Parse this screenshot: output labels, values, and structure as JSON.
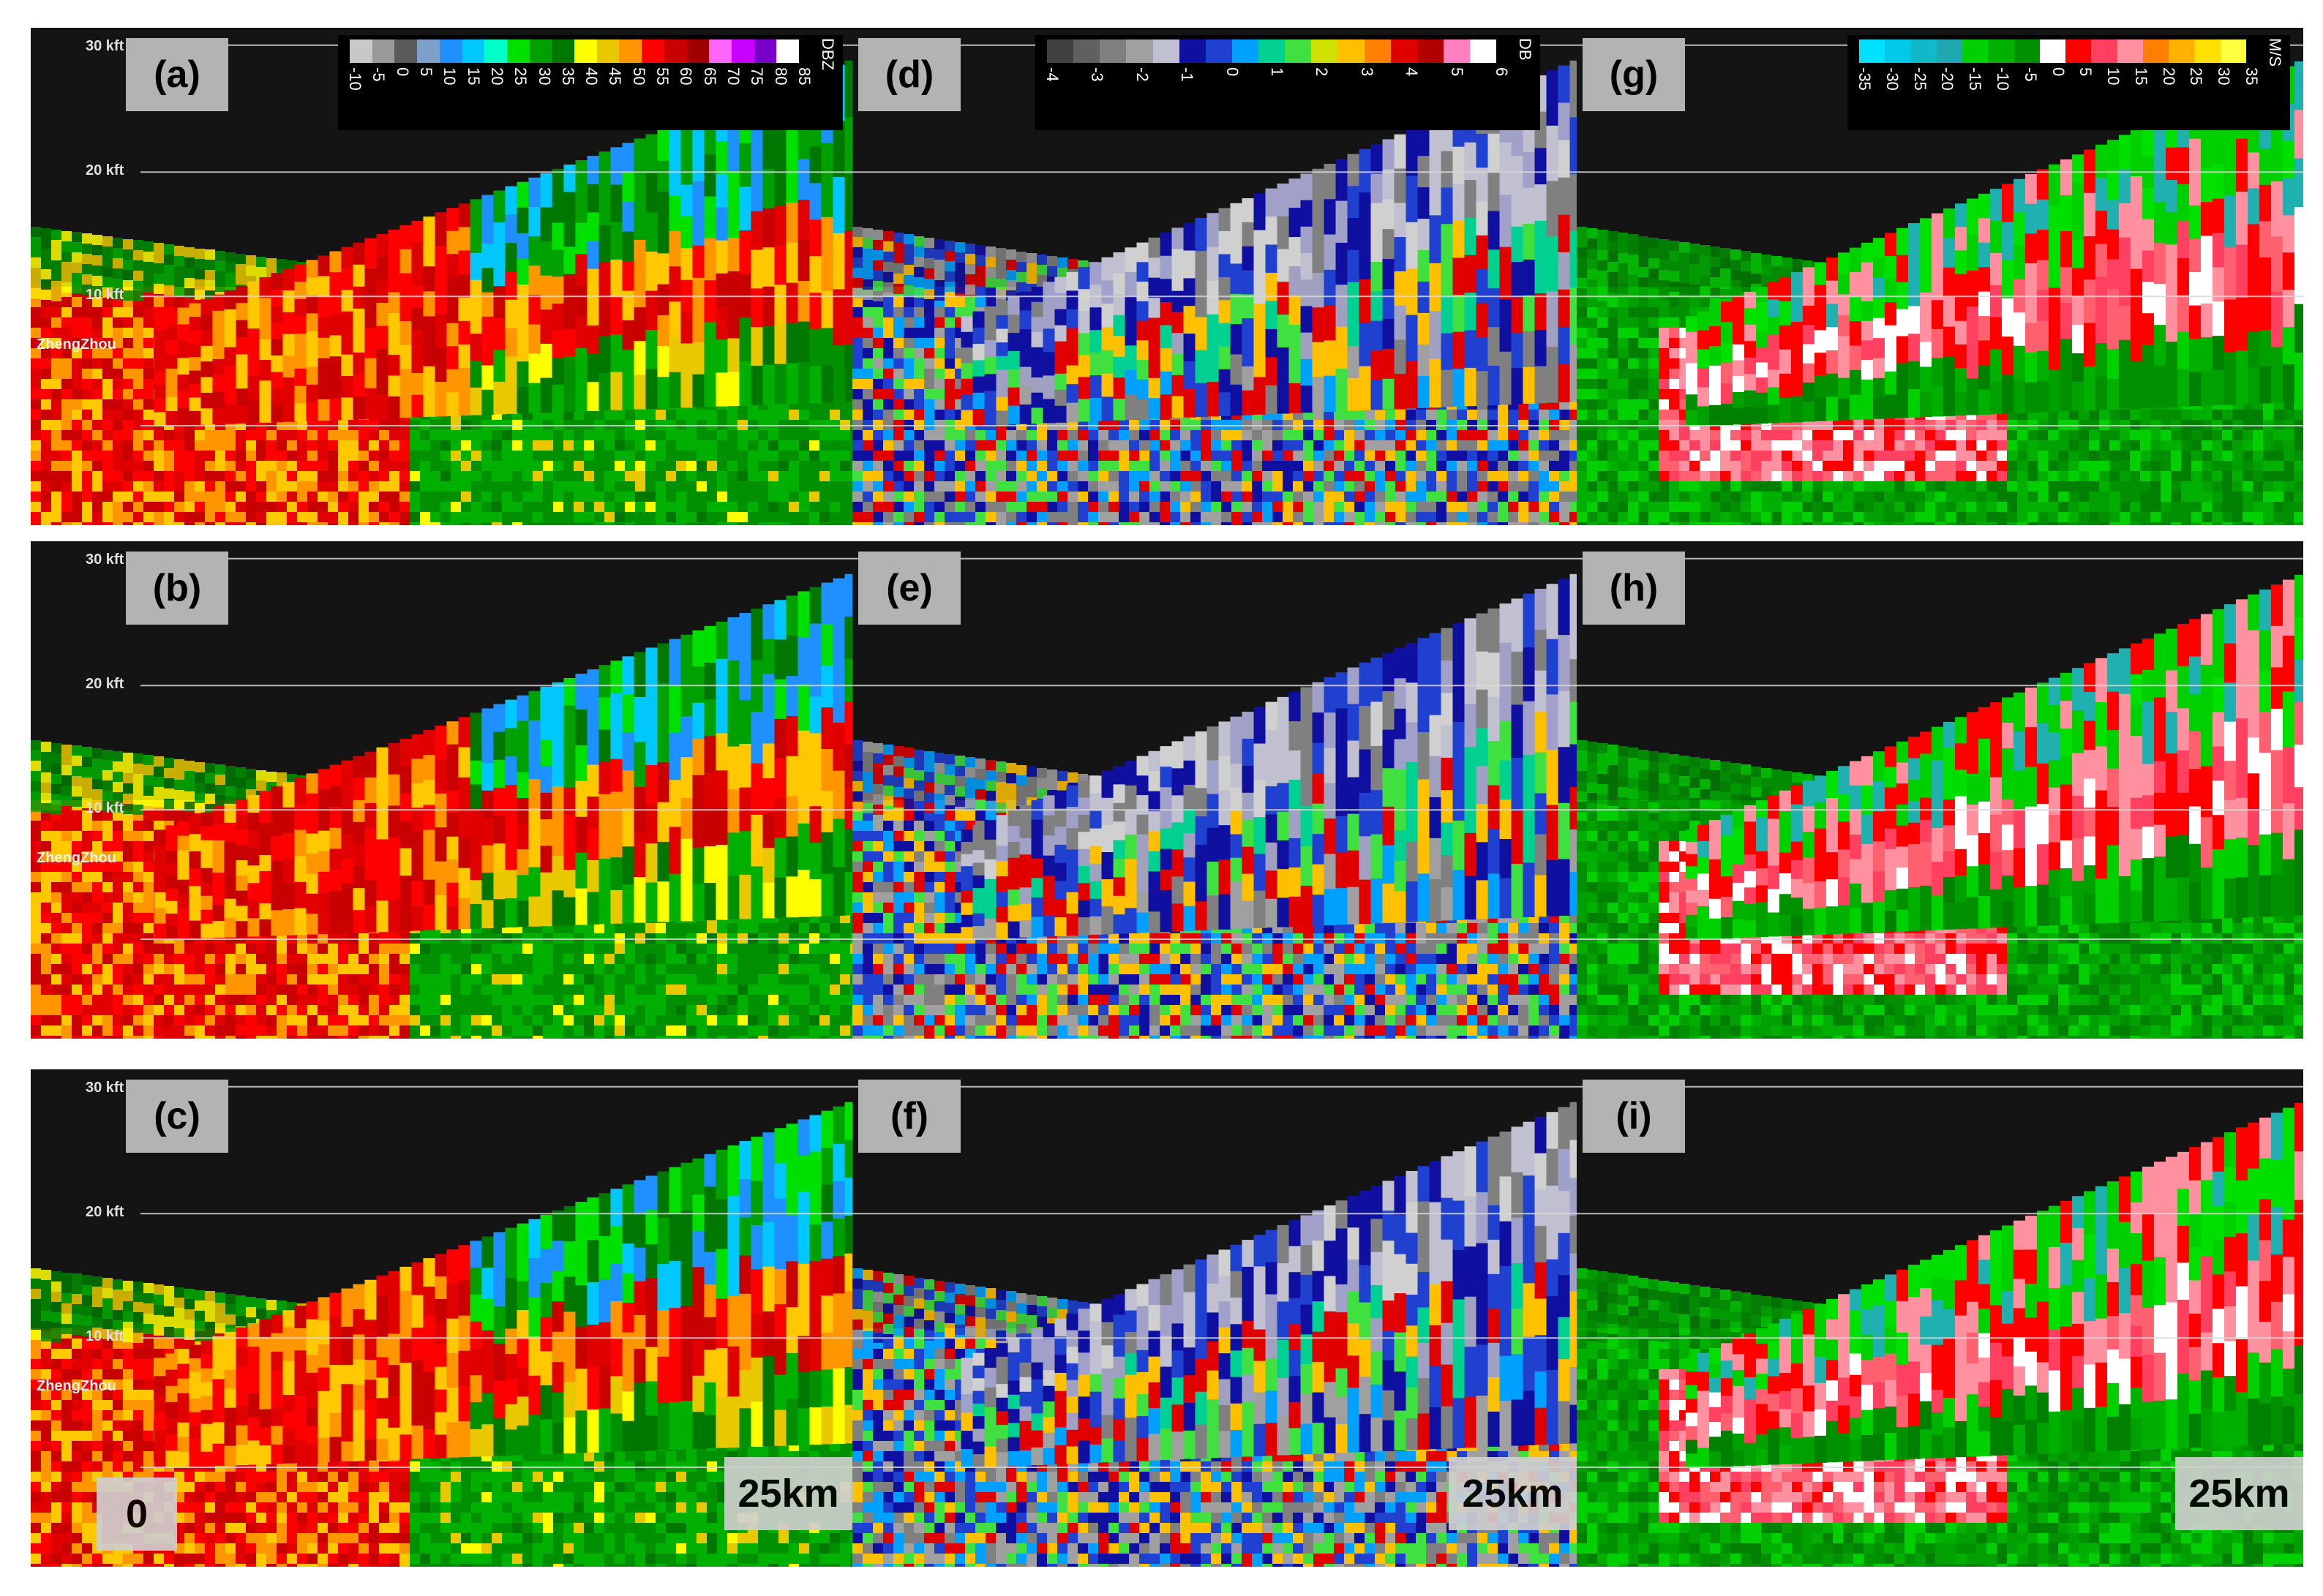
{
  "panels": [
    {
      "id": "a",
      "label": "(a)",
      "field": "reflectivity",
      "station": "ZhengZhou"
    },
    {
      "id": "b",
      "label": "(b)",
      "field": "reflectivity",
      "station": "ZhengZhou"
    },
    {
      "id": "c",
      "label": "(c)",
      "field": "reflectivity",
      "station": "ZhengZhou"
    },
    {
      "id": "d",
      "label": "(d)",
      "field": "differential-reflectivity"
    },
    {
      "id": "e",
      "label": "(e)",
      "field": "differential-reflectivity"
    },
    {
      "id": "f",
      "label": "(f)",
      "field": "differential-reflectivity"
    },
    {
      "id": "g",
      "label": "(g)",
      "field": "velocity"
    },
    {
      "id": "h",
      "label": "(h)",
      "field": "velocity"
    },
    {
      "id": "i",
      "label": "(i)",
      "field": "velocity"
    }
  ],
  "altitude_labels": [
    "30 kft",
    "20 kft",
    "10 kft"
  ],
  "distance_labels": {
    "start": "0",
    "end": "25km"
  },
  "colorbars": {
    "reflectivity": {
      "unit": "DBZ",
      "ticks": [
        "-10",
        "-5",
        "0",
        "5",
        "10",
        "15",
        "20",
        "25",
        "30",
        "35",
        "40",
        "45",
        "50",
        "55",
        "60",
        "65",
        "70",
        "75",
        "80",
        "85"
      ],
      "colors": [
        "#c8c8c8",
        "#9a9a9a",
        "#5a5a5a",
        "#7fa0c8",
        "#1e90ff",
        "#00c8ff",
        "#00ffc8",
        "#00e000",
        "#00a000",
        "#007800",
        "#ffff00",
        "#e8c800",
        "#ff9600",
        "#ff0000",
        "#c80000",
        "#a00000",
        "#ff64ff",
        "#c800ff",
        "#7800c8",
        "#ffffff"
      ]
    },
    "differential-reflectivity": {
      "unit": "DB",
      "ticks": [
        "-4",
        "-3",
        "-2",
        "-1",
        "0",
        "1",
        "2",
        "3",
        "4",
        "5",
        "6"
      ],
      "colors": [
        "#404040",
        "#606060",
        "#808080",
        "#a0a0a0",
        "#c0c0d0",
        "#1010a0",
        "#2040d0",
        "#00a0ff",
        "#00d090",
        "#40e040",
        "#d0e000",
        "#ffc000",
        "#ff8000",
        "#e00000",
        "#b00000",
        "#ff80c0",
        "#ffffff"
      ]
    },
    "velocity": {
      "unit": "M/S",
      "ticks": [
        "-35",
        "-30",
        "-25",
        "-20",
        "-15",
        "-10",
        "-5",
        "0",
        "5",
        "10",
        "15",
        "20",
        "25",
        "30",
        "35"
      ],
      "colors": [
        "#00e0ff",
        "#00c8e8",
        "#10b8c8",
        "#20a8b0",
        "#00d000",
        "#00b000",
        "#009000",
        "#ffffff",
        "#ff0000",
        "#ff4060",
        "#ff90a0",
        "#ff8000",
        "#ffb000",
        "#ffe000",
        "#ffff40"
      ]
    }
  }
}
